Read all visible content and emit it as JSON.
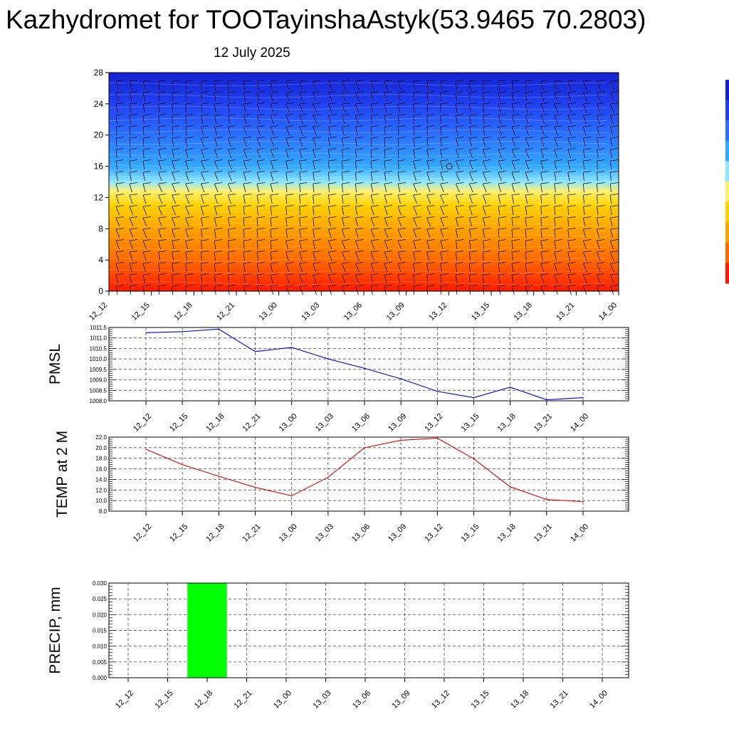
{
  "title": "Kazhydromet for TOOTayinshaAstyk(53.9465 70.2803)",
  "subtitle": "12 July 2025",
  "time_labels": [
    "12_12",
    "12_15",
    "12_18",
    "12_21",
    "13_00",
    "13_03",
    "13_06",
    "13_09",
    "13_12",
    "13_15",
    "13_18",
    "13_21",
    "14_00"
  ],
  "chart_data": [
    {
      "type": "heatmap",
      "name_hint": "vertical cross-section",
      "x": [
        "12_12",
        "12_15",
        "12_18",
        "12_21",
        "13_00",
        "13_03",
        "13_06",
        "13_09",
        "13_12",
        "13_15",
        "13_18",
        "13_21",
        "14_00"
      ],
      "y_ticks": [
        0,
        4,
        8,
        12,
        16,
        20,
        24,
        28
      ],
      "ylim": [
        0,
        28
      ],
      "colormap": [
        "#ff1a00",
        "#ff6a00",
        "#ffa300",
        "#ffd200",
        "#fff170",
        "#8fe6ff",
        "#33a8ff",
        "#2b70ff",
        "#2140f0",
        "#1420d0"
      ],
      "colormap_stops_y": [
        0,
        4,
        8,
        11,
        12.8,
        14,
        16,
        20,
        24,
        28
      ]
    },
    {
      "type": "line",
      "ylabel": "PMSL",
      "x": [
        "12_12",
        "12_15",
        "12_18",
        "12_21",
        "13_00",
        "13_03",
        "13_06",
        "13_09",
        "13_12",
        "13_15",
        "13_18",
        "13_21",
        "14_00"
      ],
      "values": [
        1011.25,
        1011.3,
        1011.42,
        1010.35,
        1010.55,
        1010.0,
        1009.55,
        1009.05,
        1008.45,
        1008.15,
        1008.65,
        1008.05,
        1008.15
      ],
      "ylim": [
        1008.0,
        1011.5
      ],
      "y_ticks": [
        "1008.0",
        "1008.5",
        "1009.0",
        "1009.5",
        "1010.0",
        "1010.5",
        "1011.0",
        "1011.5"
      ],
      "color": "#0000dd"
    },
    {
      "type": "line",
      "ylabel": "TEMP at 2 M",
      "x": [
        "12_12",
        "12_15",
        "12_18",
        "12_21",
        "13_00",
        "13_03",
        "13_06",
        "13_09",
        "13_12",
        "13_15",
        "13_18",
        "13_21",
        "14_00"
      ],
      "values": [
        19.7,
        16.8,
        14.6,
        12.5,
        10.9,
        14.4,
        20.0,
        21.4,
        21.8,
        17.9,
        12.6,
        10.2,
        9.8
      ],
      "ylim": [
        8.0,
        22.0
      ],
      "y_ticks": [
        "8.0",
        "10.0",
        "12.0",
        "14.0",
        "16.0",
        "18.0",
        "20.0",
        "22.0"
      ],
      "color": "#dd0000"
    },
    {
      "type": "bar",
      "ylabel": "PRECIP, mm",
      "x": [
        "12_12",
        "12_15",
        "12_18",
        "12_21",
        "13_00",
        "13_03",
        "13_06",
        "13_09",
        "13_12",
        "13_15",
        "13_18",
        "13_21",
        "14_00"
      ],
      "values": [
        0,
        0,
        0.03,
        0,
        0,
        0,
        0,
        0,
        0,
        0,
        0,
        0,
        0
      ],
      "ylim": [
        0,
        0.03
      ],
      "y_ticks": [
        "0.000",
        "0.005",
        "0.010",
        "0.015",
        "0.020",
        "0.025",
        "0.030"
      ],
      "color": "#00ff00"
    }
  ]
}
